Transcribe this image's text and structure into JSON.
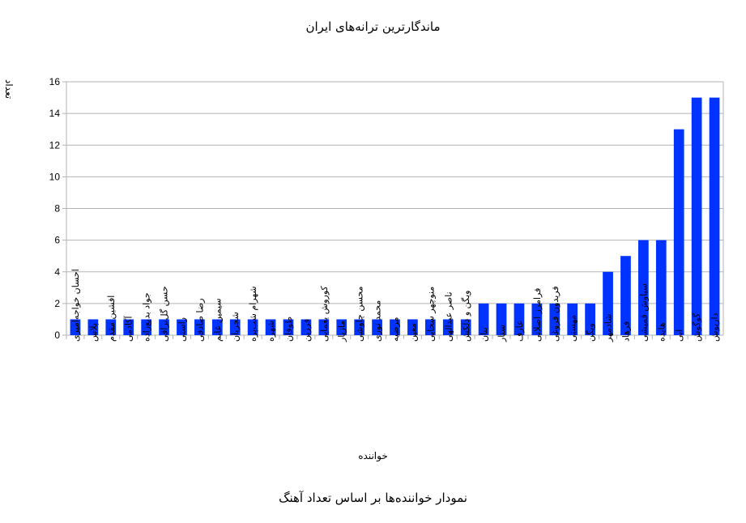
{
  "chart_data": {
    "type": "bar",
    "title": "ماندگارترین ترانه‌های ایران",
    "xlabel": "خواننده",
    "ylabel": "تعداد",
    "caption": "نمودار خواننده‌ها بر اساس تعداد آهنگ",
    "ylim": [
      0,
      16
    ],
    "yticks": [
      0,
      2,
      4,
      6,
      8,
      10,
      12,
      14,
      16
    ],
    "grid": true,
    "bar_color": "#0033ff",
    "categories": [
      "احسان خواجه‌امیری",
      "پلاس",
      "افشین مقدم",
      "آکادمی",
      "جواد بدیع‌زاده",
      "حسن گل‌نراقی",
      "راستی",
      "رضا صادقی",
      "سیمین غانم",
      "شجریان",
      "شهرام شب‌پره",
      "شهره",
      "طوفان",
      "فرزین",
      "کوروش یغمایی",
      "مازیار",
      "محسن چاوشی",
      "محمد نوری",
      "مرضیه",
      "معین",
      "منوچهر سخایی",
      "ناصر عبدالهی",
      "ویگن و دلکش",
      "بنان",
      "ستار",
      "عارف",
      "فرامرز اصلانی",
      "فریدون فروغی",
      "مهستی",
      "ویگن",
      "شادمهر",
      "فرهاد",
      "سیاوش قمیشی",
      "هایده",
      "ابی",
      "گوگوش",
      "داریوش"
    ],
    "values": [
      1,
      1,
      1,
      1,
      1,
      1,
      1,
      1,
      1,
      1,
      1,
      1,
      1,
      1,
      1,
      1,
      1,
      1,
      1,
      1,
      1,
      1,
      1,
      2,
      2,
      2,
      2,
      2,
      2,
      2,
      4,
      5,
      6,
      6,
      13,
      15,
      15
    ]
  }
}
